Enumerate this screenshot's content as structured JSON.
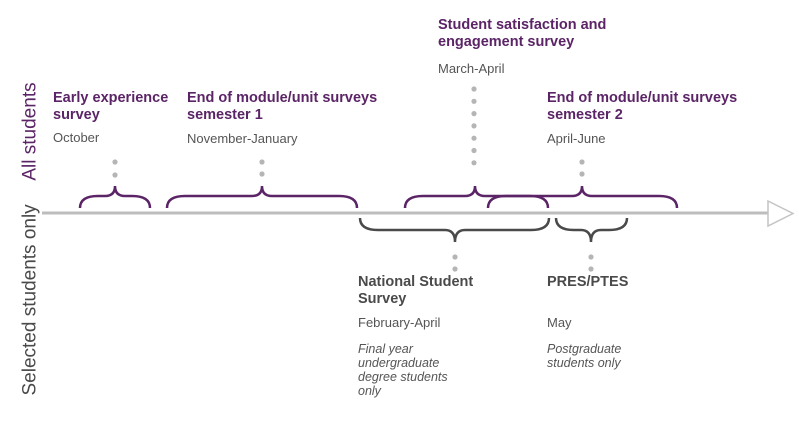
{
  "row_labels": {
    "top": "All students",
    "bottom": "Selected students only"
  },
  "colors": {
    "all_students": "#5b2466",
    "selected_students": "#4a4a4a",
    "axis": "#bdbdbd",
    "dots": "#b5b5b5"
  },
  "all_students": [
    {
      "title": "Early experience survey",
      "period": "October"
    },
    {
      "title": "End of module/unit surveys semester 1",
      "period": "November-January"
    },
    {
      "title": "Student satisfaction and engagement survey",
      "period": "March-April"
    },
    {
      "title": "End of module/unit surveys semester 2",
      "period": "April-June"
    }
  ],
  "selected_students": [
    {
      "title": "National Student Survey",
      "period": "February-April",
      "note": "Final year undergraduate degree students only"
    },
    {
      "title": "PRES/PTES",
      "period": "May",
      "note": "Postgraduate students only"
    }
  ]
}
